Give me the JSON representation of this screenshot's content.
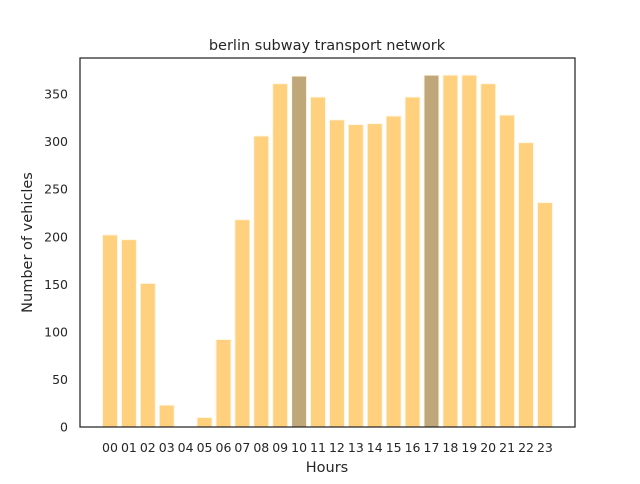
{
  "chart_data": {
    "type": "bar",
    "title": "berlin subway transport network",
    "xlabel": "Hours",
    "ylabel": "Number of vehicles",
    "categories": [
      "00",
      "01",
      "02",
      "03",
      "04",
      "05",
      "06",
      "07",
      "08",
      "09",
      "10",
      "11",
      "12",
      "13",
      "14",
      "15",
      "16",
      "17",
      "18",
      "19",
      "20",
      "21",
      "22",
      "23"
    ],
    "values": [
      202,
      197,
      151,
      23,
      0,
      10,
      92,
      218,
      306,
      361,
      369,
      347,
      323,
      318,
      319,
      327,
      347,
      370,
      370,
      370,
      361,
      328,
      299,
      236
    ],
    "highlighted_categories": [
      "10",
      "17"
    ],
    "ylim": [
      0,
      388
    ],
    "yticks": [
      0,
      50,
      100,
      150,
      200,
      250,
      300,
      350
    ],
    "grid": false,
    "colors": {
      "bar": "#ffd07e",
      "bar_highlight": "#c0a77a",
      "bar_edge": "#fff7e6",
      "axis": "#262626"
    }
  }
}
